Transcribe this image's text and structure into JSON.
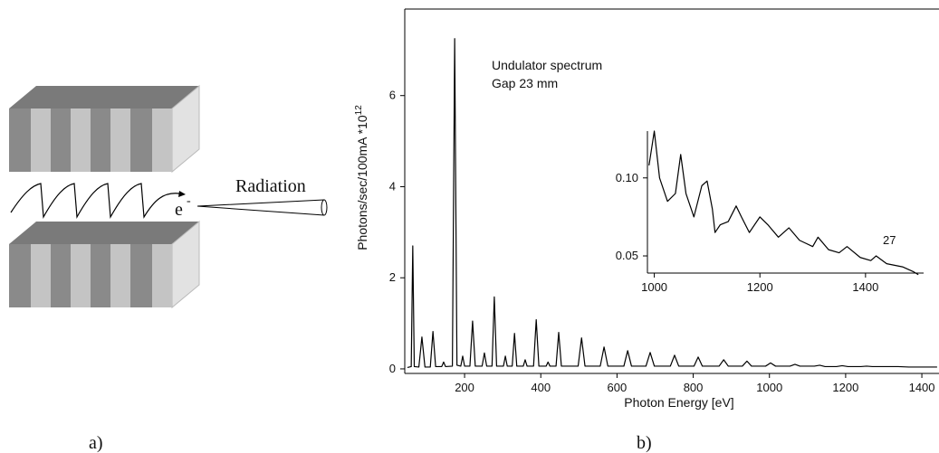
{
  "diagram": {
    "electron_label": "e",
    "electron_charge": "-",
    "radiation_label": "Radiation",
    "panel_label": "a)"
  },
  "chart_data": [
    {
      "type": "line",
      "panel_label": "b)",
      "xlabel": "Photon Energy [eV]",
      "ylabel": "Photons/sec/100mA  *10",
      "ylabel_exponent": "12",
      "annotations": [
        "Undulator spectrum",
        "Gap 23 mm"
      ],
      "color": "#000000",
      "xlim": [
        43,
        1445
      ],
      "ylim": [
        -0.1,
        7.9
      ],
      "xticks": [
        200,
        400,
        600,
        800,
        1000,
        1200,
        1400
      ],
      "yticks": [
        0,
        2,
        4,
        6
      ],
      "grid": false,
      "x": [
        50,
        60,
        64,
        68,
        80,
        88,
        96,
        110,
        117,
        124,
        140,
        145,
        150,
        168,
        174,
        180,
        190,
        195,
        200,
        214,
        221,
        228,
        246,
        252,
        258,
        272,
        278,
        284,
        302,
        307,
        312,
        325,
        331,
        337,
        354,
        359,
        364,
        381,
        388,
        395,
        414,
        419,
        424,
        440,
        447,
        454,
        498,
        507,
        516,
        556,
        566,
        576,
        618,
        628,
        638,
        676,
        687,
        698,
        740,
        751,
        762,
        802,
        813,
        824,
        868,
        880,
        892,
        929,
        941,
        953,
        990,
        1003,
        1016,
        1054,
        1067,
        1080,
        1118,
        1132,
        1146,
        1176,
        1191,
        1206,
        1240,
        1255,
        1270,
        1306,
        1322,
        1338,
        1366,
        1381,
        1396,
        1440
      ],
      "values": [
        0.03,
        0.05,
        2.7,
        0.05,
        0.04,
        0.7,
        0.04,
        0.04,
        0.82,
        0.05,
        0.05,
        0.15,
        0.05,
        0.06,
        7.25,
        0.08,
        0.06,
        0.28,
        0.06,
        0.06,
        1.05,
        0.06,
        0.06,
        0.35,
        0.06,
        0.06,
        1.58,
        0.06,
        0.06,
        0.28,
        0.06,
        0.06,
        0.78,
        0.06,
        0.06,
        0.2,
        0.06,
        0.06,
        1.08,
        0.06,
        0.06,
        0.15,
        0.06,
        0.06,
        0.8,
        0.06,
        0.06,
        0.68,
        0.06,
        0.06,
        0.48,
        0.06,
        0.06,
        0.4,
        0.06,
        0.06,
        0.36,
        0.06,
        0.06,
        0.3,
        0.06,
        0.06,
        0.26,
        0.06,
        0.06,
        0.2,
        0.06,
        0.06,
        0.17,
        0.06,
        0.06,
        0.13,
        0.06,
        0.06,
        0.1,
        0.06,
        0.06,
        0.08,
        0.05,
        0.05,
        0.07,
        0.05,
        0.05,
        0.06,
        0.05,
        0.05,
        0.05,
        0.05,
        0.04,
        0.04,
        0.04,
        0.04
      ]
    },
    {
      "type": "line",
      "annotation": "27",
      "color": "#000000",
      "xlim": [
        987,
        1510
      ],
      "ylim": [
        0.039,
        0.13
      ],
      "xticks": [
        1000,
        1200,
        1400
      ],
      "yticks": [
        0.05,
        {
          "value": 0.1,
          "label": "0.10"
        }
      ],
      "grid": false,
      "x": [
        990,
        1000,
        1010,
        1025,
        1040,
        1050,
        1060,
        1075,
        1090,
        1100,
        1110,
        1115,
        1125,
        1140,
        1155,
        1165,
        1180,
        1200,
        1215,
        1235,
        1255,
        1275,
        1300,
        1310,
        1330,
        1350,
        1365,
        1390,
        1410,
        1420,
        1440,
        1470,
        1490,
        1500
      ],
      "values": [
        0.108,
        0.13,
        0.1,
        0.085,
        0.09,
        0.115,
        0.09,
        0.075,
        0.095,
        0.098,
        0.08,
        0.065,
        0.07,
        0.072,
        0.082,
        0.075,
        0.065,
        0.075,
        0.07,
        0.062,
        0.068,
        0.06,
        0.056,
        0.062,
        0.054,
        0.052,
        0.056,
        0.049,
        0.047,
        0.05,
        0.045,
        0.043,
        0.04,
        0.038
      ]
    }
  ]
}
